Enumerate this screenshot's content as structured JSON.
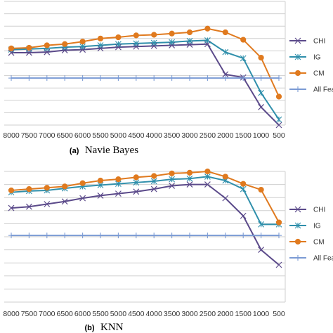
{
  "chart_data": [
    {
      "type": "line",
      "panel_label": "(a)",
      "title": "Navie Bayes",
      "x": [
        8000,
        7500,
        7000,
        6500,
        6000,
        5500,
        5000,
        4500,
        4000,
        3500,
        3000,
        2500,
        2000,
        1500,
        1000,
        500
      ],
      "ylim": [
        0,
        10
      ],
      "grid": true,
      "legend_position": "right",
      "series": [
        {
          "name": "CHI",
          "color": "#5b4a8a",
          "marker": "x",
          "values": [
            5.85,
            5.85,
            5.9,
            6.05,
            6.1,
            6.2,
            6.3,
            6.35,
            6.4,
            6.45,
            6.5,
            6.55,
            4.1,
            3.85,
            1.45,
            0.0
          ]
        },
        {
          "name": "IG",
          "color": "#2f8fab",
          "marker": "asterisk",
          "values": [
            6.1,
            6.15,
            6.2,
            6.3,
            6.35,
            6.45,
            6.55,
            6.6,
            6.65,
            6.7,
            6.8,
            6.85,
            5.9,
            5.4,
            2.6,
            0.45
          ]
        },
        {
          "name": "CM",
          "color": "#e07a1f",
          "marker": "circle",
          "values": [
            6.2,
            6.25,
            6.45,
            6.55,
            6.75,
            7.0,
            7.1,
            7.25,
            7.3,
            7.4,
            7.5,
            7.8,
            7.5,
            6.9,
            5.45,
            2.3
          ]
        },
        {
          "name": "All Feat",
          "color": "#7b9bd4",
          "marker": "plus",
          "values": [
            3.8,
            3.8,
            3.8,
            3.8,
            3.8,
            3.8,
            3.8,
            3.8,
            3.8,
            3.8,
            3.8,
            3.8,
            3.8,
            3.8,
            3.8,
            3.8
          ]
        }
      ]
    },
    {
      "type": "line",
      "panel_label": "(b)",
      "title": "KNN",
      "x": [
        8000,
        7500,
        7000,
        6500,
        6000,
        5500,
        5000,
        4500,
        4000,
        3500,
        3000,
        2500,
        2000,
        1500,
        1000,
        500
      ],
      "x_tick_labels": [
        "8000",
        "7500",
        "7000",
        "6500",
        "6000",
        "5500",
        "5000",
        "4500",
        "4000",
        "3500",
        "3000",
        "2500",
        "2000",
        "1500",
        "1000",
        "500"
      ],
      "ylim": [
        0,
        10
      ],
      "grid": true,
      "legend_position": "right",
      "series": [
        {
          "name": "CHI",
          "color": "#5b4a8a",
          "marker": "x",
          "values": [
            7.2,
            7.3,
            7.5,
            7.7,
            7.95,
            8.15,
            8.3,
            8.45,
            8.65,
            8.9,
            9.0,
            9.0,
            7.95,
            6.6,
            4.0,
            2.85
          ]
        },
        {
          "name": "IG",
          "color": "#2f8fab",
          "marker": "asterisk",
          "values": [
            8.4,
            8.5,
            8.55,
            8.7,
            8.85,
            8.95,
            9.05,
            9.15,
            9.25,
            9.4,
            9.45,
            9.6,
            9.3,
            8.65,
            5.95,
            5.95
          ]
        },
        {
          "name": "CM",
          "color": "#e07a1f",
          "marker": "circle",
          "values": [
            8.55,
            8.65,
            8.75,
            8.85,
            9.1,
            9.3,
            9.4,
            9.55,
            9.65,
            9.85,
            9.9,
            10.0,
            9.6,
            9.05,
            8.6,
            6.1
          ]
        },
        {
          "name": "All Feat",
          "color": "#7b9bd4",
          "marker": "plus",
          "values": [
            5.1,
            5.1,
            5.1,
            5.1,
            5.1,
            5.1,
            5.1,
            5.1,
            5.1,
            5.1,
            5.1,
            5.1,
            5.1,
            5.1,
            5.1,
            5.1
          ]
        }
      ]
    }
  ]
}
